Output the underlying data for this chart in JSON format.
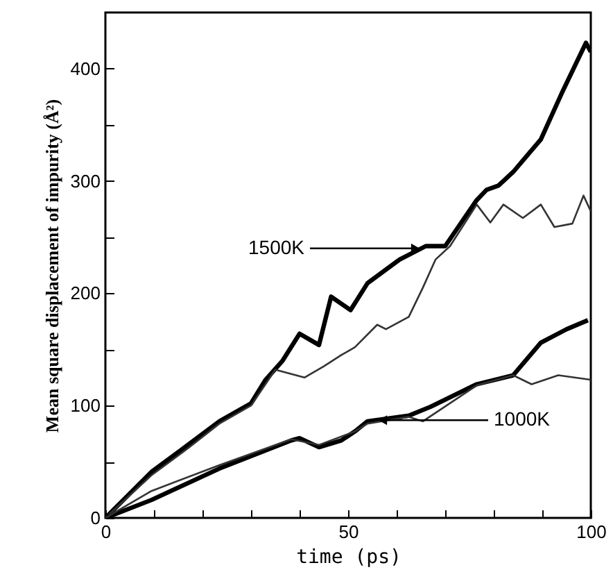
{
  "chart_data": {
    "type": "line",
    "xlabel": "time (ps)",
    "ylabel": "Mean square displacement of impurity (Å²)",
    "xlim": [
      0,
      100
    ],
    "ylim": [
      0,
      450
    ],
    "xticks": [
      0,
      {
        "value": 10,
        "label": null
      },
      {
        "value": 20,
        "label": null
      },
      {
        "value": 30,
        "label": null
      },
      {
        "value": 40,
        "label": null
      },
      50,
      {
        "value": 60,
        "label": null
      },
      {
        "value": 70,
        "label": null
      },
      {
        "value": 80,
        "label": null
      },
      {
        "value": 90,
        "label": null
      },
      100
    ],
    "yticks": [
      0,
      {
        "value": 50,
        "label": null
      },
      100,
      {
        "value": 150,
        "label": null
      },
      200,
      {
        "value": 250,
        "label": null
      },
      300,
      {
        "value": 350,
        "label": null
      },
      400
    ],
    "grid": false,
    "series": [
      {
        "color": "#000000",
        "x": [
          0,
          9.5,
          17,
          23.5,
          30,
          33,
          36.5,
          40,
          44,
          46.5,
          50.5,
          54,
          60.6,
          66,
          70,
          76.5,
          78.5,
          81,
          84,
          89.7,
          94,
          99,
          100
        ],
        "values": [
          0,
          41,
          65,
          86,
          102,
          123,
          140,
          164,
          154,
          197,
          185,
          209,
          230,
          242,
          242,
          283,
          292,
          296,
          308,
          337,
          378,
          423,
          415
        ]
      },
      {
        "color": "#333333",
        "x": [
          0,
          9.5,
          17,
          23.5,
          30,
          35,
          41,
          45,
          48.6,
          51.4,
          56,
          57.8,
          62.5,
          65.4,
          68,
          71,
          76.5,
          79.3,
          82,
          86,
          89.7,
          92.5,
          96.2,
          98.5,
          100
        ],
        "values": [
          0,
          38,
          62,
          84,
          100,
          132,
          125,
          135,
          145,
          152,
          172,
          168,
          179,
          205,
          230,
          242,
          279,
          263,
          279,
          267,
          279,
          259,
          262,
          287,
          273
        ]
      },
      {
        "color": "#000000",
        "x": [
          0,
          9.5,
          23.5,
          38.3,
          40,
          44,
          48.6,
          51.4,
          54,
          62.5,
          67,
          76.5,
          84,
          89.7,
          95,
          99.4
        ],
        "values": [
          0,
          16,
          44,
          69,
          71,
          63,
          69,
          77,
          86,
          91,
          99,
          119,
          127,
          156,
          168,
          176
        ]
      },
      {
        "color": "#333333",
        "x": [
          0,
          9.5,
          23.5,
          38.3,
          44,
          51.4,
          54,
          62.5,
          65.4,
          76.5,
          84,
          87.8,
          93.3,
          100
        ],
        "values": [
          0,
          24,
          47,
          70,
          65,
          77,
          84,
          90,
          86,
          118,
          127,
          119,
          127,
          123
        ]
      }
    ],
    "annotations": [
      {
        "text": "1500K",
        "x": 65,
        "y": 240
      },
      {
        "text": "1000K",
        "x": 56,
        "y": 87
      }
    ]
  }
}
